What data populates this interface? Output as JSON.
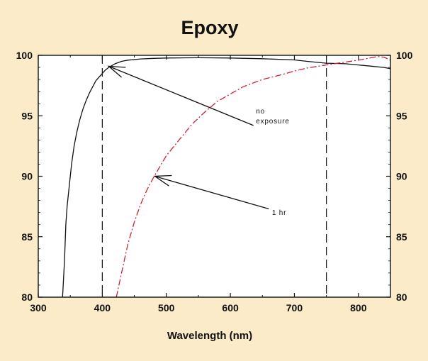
{
  "chart_data": {
    "type": "line",
    "title": "Epoxy",
    "xlabel": "Wavelength (nm)",
    "ylabel": "",
    "xlim": [
      300,
      850
    ],
    "ylim": [
      80,
      100
    ],
    "x_ticks": [
      300,
      400,
      500,
      600,
      700,
      800
    ],
    "y_ticks": [
      80,
      85,
      90,
      95,
      100
    ],
    "y_ticks_right": [
      80,
      85,
      90,
      95,
      100
    ],
    "grid": false,
    "reference_lines": [
      400,
      750
    ],
    "series": [
      {
        "color": "#111111",
        "style": "solid",
        "points": [
          [
            338,
            80
          ],
          [
            341,
            83
          ],
          [
            343,
            86
          ],
          [
            345,
            87.5
          ],
          [
            348,
            89
          ],
          [
            352,
            91
          ],
          [
            356,
            92.5
          ],
          [
            360,
            93.6
          ],
          [
            365,
            94.7
          ],
          [
            370,
            95.6
          ],
          [
            375,
            96.3
          ],
          [
            380,
            96.9
          ],
          [
            385,
            97.4
          ],
          [
            390,
            97.9
          ],
          [
            395,
            98.2
          ],
          [
            400,
            98.5
          ],
          [
            405,
            98.8
          ],
          [
            410,
            99.0
          ],
          [
            420,
            99.3
          ],
          [
            430,
            99.5
          ],
          [
            440,
            99.6
          ],
          [
            460,
            99.7
          ],
          [
            480,
            99.75
          ],
          [
            500,
            99.78
          ],
          [
            550,
            99.8
          ],
          [
            600,
            99.78
          ],
          [
            650,
            99.72
          ],
          [
            700,
            99.62
          ],
          [
            720,
            99.5
          ],
          [
            750,
            99.35
          ],
          [
            780,
            99.3
          ],
          [
            800,
            99.2
          ],
          [
            820,
            99.1
          ],
          [
            840,
            99.0
          ],
          [
            850,
            98.9
          ]
        ]
      },
      {
        "color": "#CC2233",
        "style": "dashed",
        "points": [
          [
            422,
            80
          ],
          [
            430,
            82
          ],
          [
            440,
            84.4
          ],
          [
            450,
            86.2
          ],
          [
            460,
            87.7
          ],
          [
            470,
            88.9
          ],
          [
            480,
            89.9
          ],
          [
            490,
            90.8
          ],
          [
            500,
            91.7
          ],
          [
            520,
            93.0
          ],
          [
            540,
            94.3
          ],
          [
            560,
            95.3
          ],
          [
            580,
            96.2
          ],
          [
            600,
            96.8
          ],
          [
            620,
            97.4
          ],
          [
            650,
            98.0
          ],
          [
            680,
            98.4
          ],
          [
            700,
            98.7
          ],
          [
            720,
            98.95
          ],
          [
            750,
            99.2
          ],
          [
            780,
            99.45
          ],
          [
            800,
            99.6
          ],
          [
            820,
            99.8
          ],
          [
            830,
            99.9
          ],
          [
            840,
            99.85
          ],
          [
            850,
            99.6
          ]
        ]
      }
    ],
    "annotations": [
      {
        "lines": [
          "no",
          "exposure"
        ],
        "text_anchor": [
          640,
          95.2
        ],
        "arrow_from": [
          636,
          94.2
        ],
        "arrow_to": [
          410,
          99.1
        ]
      },
      {
        "lines": [
          "1 hr"
        ],
        "text_anchor": [
          665,
          86.8
        ],
        "arrow_from": [
          660,
          87.3
        ],
        "arrow_to": [
          482,
          90.0
        ]
      }
    ]
  }
}
